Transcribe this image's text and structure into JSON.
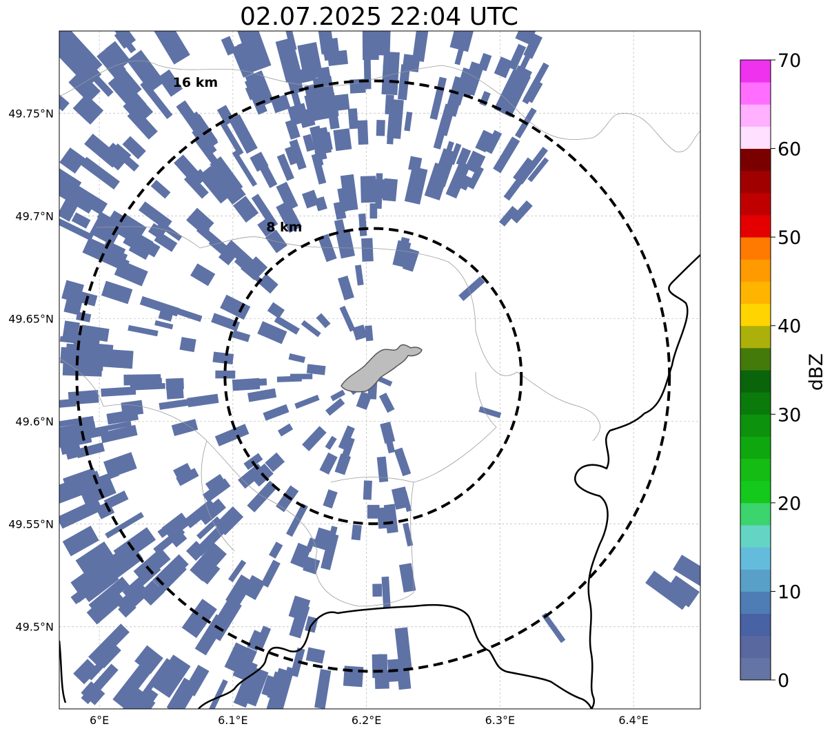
{
  "title": "02.07.2025 22:04 UTC",
  "map": {
    "lon_range": [
      5.97,
      6.45
    ],
    "lat_range": [
      49.46,
      49.79
    ],
    "center": {
      "lon": 6.205,
      "lat": 49.622
    },
    "gridlines": true,
    "lon_ticks": [
      {
        "value": 6.0,
        "label": "6°E"
      },
      {
        "value": 6.1,
        "label": "6.1°E"
      },
      {
        "value": 6.2,
        "label": "6.2°E"
      },
      {
        "value": 6.3,
        "label": "6.3°E"
      },
      {
        "value": 6.4,
        "label": "6.4°E"
      }
    ],
    "lat_ticks": [
      {
        "value": 49.75,
        "label": "49.75°N"
      },
      {
        "value": 49.7,
        "label": "49.7°N"
      },
      {
        "value": 49.65,
        "label": "49.65°N"
      },
      {
        "value": 49.6,
        "label": "49.6°N"
      },
      {
        "value": 49.55,
        "label": "49.55°N"
      },
      {
        "value": 49.5,
        "label": "49.5°N"
      }
    ],
    "range_rings": [
      {
        "radius_km": 8,
        "label": "8 km"
      },
      {
        "radius_km": 16,
        "label": "16 km"
      }
    ],
    "echo_color": "#5e72a6",
    "ring_color": "#000000",
    "city_fill": "#bdbdbd"
  },
  "colorbar": {
    "label": "dBZ",
    "min": 0,
    "max": 70,
    "step": 2.5,
    "ticks": [
      0,
      10,
      20,
      30,
      40,
      50,
      60,
      70
    ],
    "colors": [
      "#6474a4",
      "#5a68a0",
      "#4862a4",
      "#4e7cb4",
      "#58a0c8",
      "#64bcdc",
      "#64d4c4",
      "#3cd46c",
      "#14c81c",
      "#14bc14",
      "#0ea80e",
      "#0c920c",
      "#0a7a0a",
      "#0a640a",
      "#447a0a",
      "#acb00a",
      "#ffd400",
      "#ffb400",
      "#ff9a00",
      "#ff7a00",
      "#e40000",
      "#c00000",
      "#a00000",
      "#7a0000",
      "#ffe0ff",
      "#ffb0ff",
      "#ff6eff",
      "#ee32ee"
    ]
  }
}
